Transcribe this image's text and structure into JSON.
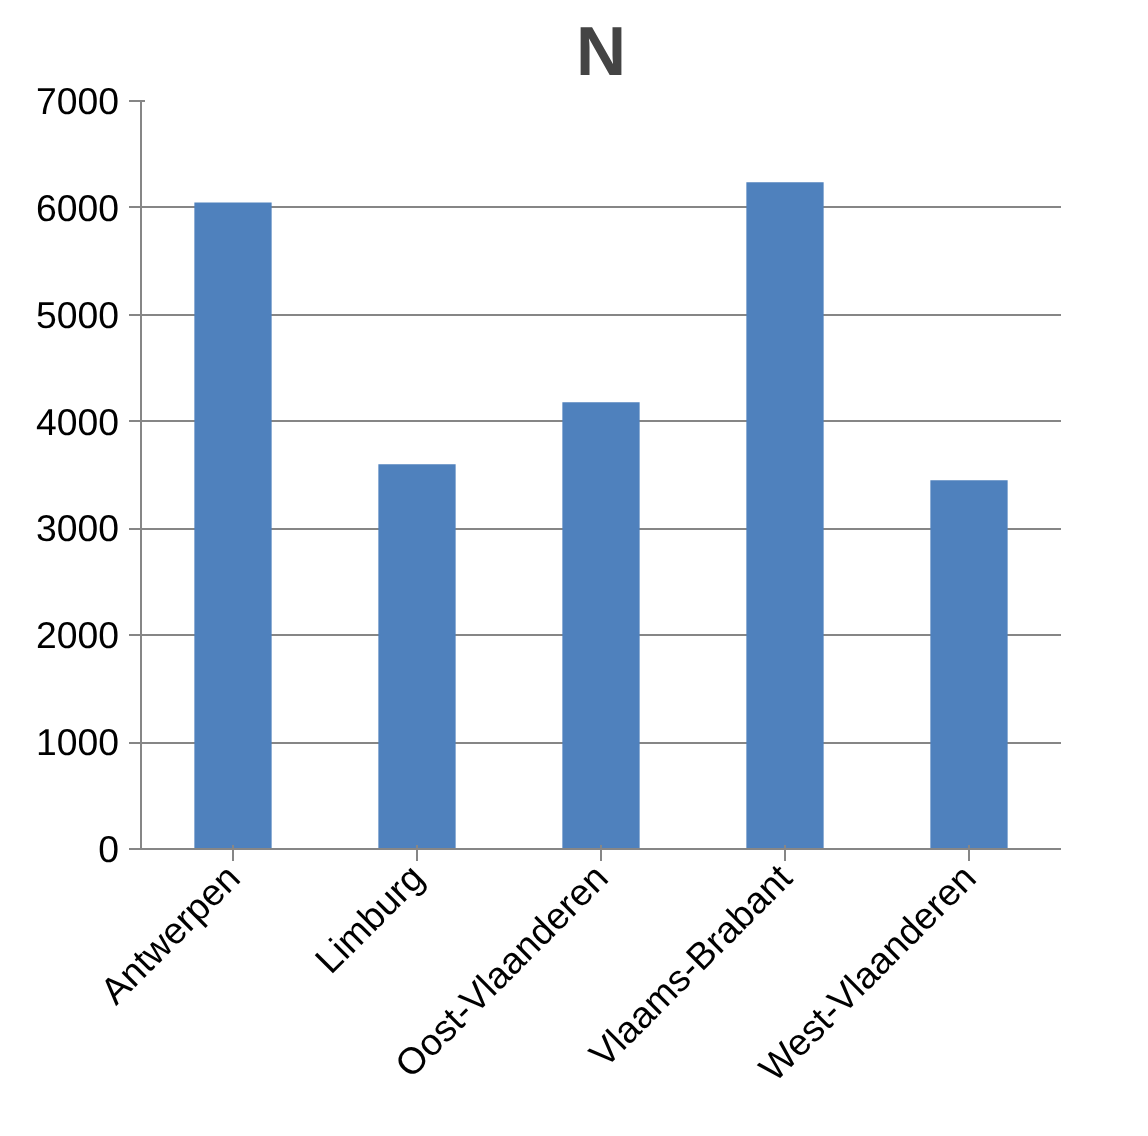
{
  "chart_data": {
    "type": "bar",
    "title": "N",
    "categories": [
      "Antwerpen",
      "Limburg",
      "Oost-Vlaanderen",
      "Vlaams-Brabant",
      "West-Vlaanderen"
    ],
    "values": [
      6050,
      3600,
      4180,
      6240,
      3450
    ],
    "color": "#4f81bd",
    "ylim": [
      0,
      7000
    ],
    "yticks": [
      0,
      1000,
      2000,
      3000,
      4000,
      5000,
      6000,
      7000
    ],
    "grid": "y"
  }
}
